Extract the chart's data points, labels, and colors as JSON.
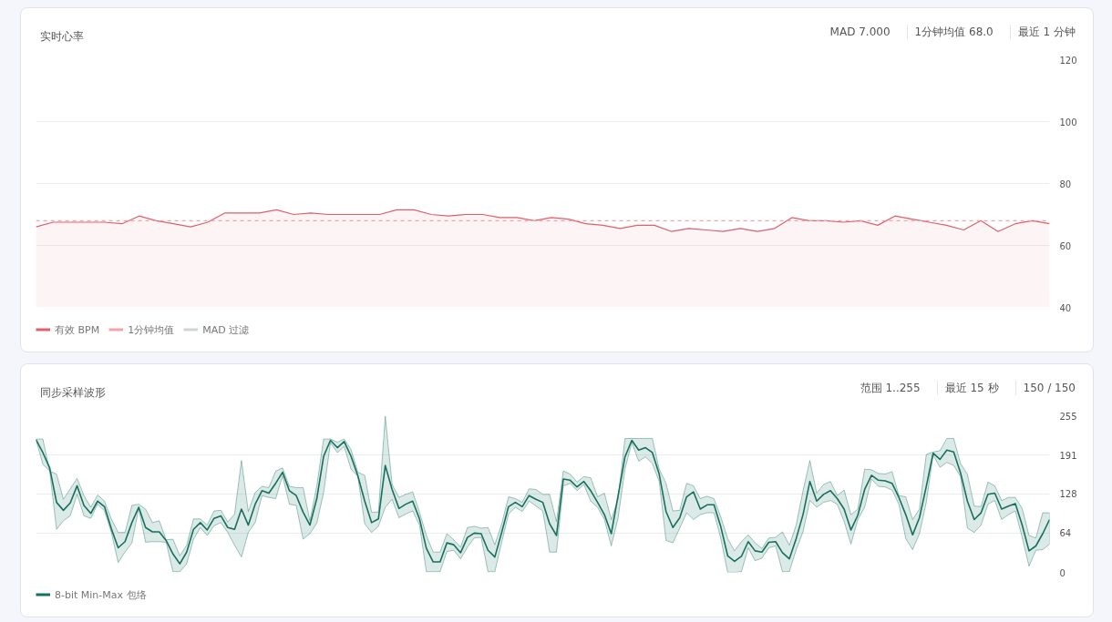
{
  "chart_data": [
    {
      "type": "line",
      "title": "实时心率",
      "annotations": [
        "MAD 7.000",
        "1分钟均值 68.0",
        "最近 1 分钟"
      ],
      "categories": [
        null,
        null,
        null,
        null,
        null,
        null,
        null,
        null,
        null,
        null,
        null,
        null,
        null,
        null,
        null,
        null,
        null,
        null,
        null,
        null,
        null,
        null,
        null,
        null,
        null,
        null,
        null,
        null,
        null,
        null,
        null,
        null,
        null,
        null,
        null,
        null,
        null,
        null,
        null,
        null,
        null,
        null,
        null,
        null,
        null,
        null,
        null,
        null,
        null,
        null,
        null,
        null,
        null,
        null,
        null,
        null,
        null,
        null,
        null,
        null
      ],
      "series": [
        {
          "name": "有效 BPM",
          "type": "area",
          "color": "#e0606e",
          "values": [
            66,
            67.5,
            67.5,
            67.5,
            67.5,
            67,
            69.5,
            68,
            67,
            66,
            67.5,
            70.5,
            70.5,
            70.5,
            71.5,
            70,
            70.5,
            70,
            70,
            70,
            70,
            71.5,
            71.5,
            70,
            69.5,
            70,
            70,
            69,
            69,
            68,
            69,
            68.5,
            67,
            66.5,
            65.5,
            66.5,
            66.5,
            64.5,
            65.5,
            65,
            64.5,
            65.5,
            64.5,
            65.5,
            69,
            68,
            68,
            67.5,
            68,
            66.5,
            69.5,
            68.5,
            67.5,
            66.5,
            65,
            68,
            64.5,
            67,
            68,
            67
          ]
        },
        {
          "name": "1分钟均值",
          "line_style": "dashed",
          "color": "#f0a3aa",
          "values": [
            68,
            68,
            68,
            68,
            68,
            68,
            68,
            68,
            68,
            68,
            68,
            68,
            68,
            68,
            68,
            68,
            68,
            68,
            68,
            68,
            68,
            68,
            68,
            68,
            68,
            68,
            68,
            68,
            68,
            68,
            68,
            68,
            68,
            68,
            68,
            68,
            68,
            68,
            68,
            68,
            68,
            68,
            68,
            68,
            68,
            68,
            68,
            68,
            68,
            68,
            68,
            68,
            68,
            68,
            68,
            68,
            68,
            68,
            68,
            68
          ]
        },
        {
          "name": "MAD 过滤",
          "color": "#cfd5dc",
          "values": [
            null,
            null,
            null,
            null,
            null,
            null,
            null,
            null,
            null,
            null,
            null,
            null,
            null,
            null,
            null,
            null,
            null,
            null,
            null,
            null,
            null,
            null,
            null,
            null,
            null,
            null,
            null,
            null,
            null,
            null,
            null,
            null,
            null,
            null,
            null,
            null,
            null,
            null,
            null,
            null,
            null,
            null,
            null,
            null,
            null,
            null,
            null,
            null,
            null,
            null,
            null,
            null,
            null,
            null,
            null,
            null,
            null,
            null,
            null,
            null
          ]
        }
      ],
      "ylim": [
        40,
        120
      ],
      "yticks": [
        40,
        60,
        80,
        100,
        120
      ],
      "grid": "y",
      "tick_labels": "y",
      "legend": "bottom left"
    },
    {
      "type": "line",
      "title": "同步采样波形",
      "annotations": [
        "范围 1..255",
        "最近 15 秒",
        "150 / 150"
      ],
      "categories": [
        null,
        null,
        null,
        null,
        null,
        null,
        null,
        null,
        null,
        null,
        null,
        null,
        null,
        null,
        null,
        null,
        null,
        null,
        null,
        null,
        null,
        null,
        null,
        null,
        null,
        null,
        null,
        null,
        null,
        null,
        null,
        null,
        null,
        null,
        null,
        null,
        null,
        null,
        null,
        null,
        null,
        null,
        null,
        null,
        null,
        null,
        null,
        null,
        null,
        null,
        null,
        null,
        null,
        null,
        null,
        null,
        null,
        null,
        null,
        null,
        null,
        null,
        null,
        null,
        null,
        null,
        null,
        null,
        null,
        null,
        null,
        null,
        null,
        null,
        null,
        null,
        null,
        null,
        null,
        null,
        null,
        null,
        null,
        null,
        null,
        null,
        null,
        null,
        null,
        null,
        null,
        null,
        null,
        null,
        null,
        null,
        null,
        null,
        null,
        null,
        null,
        null,
        null,
        null,
        null,
        null,
        null,
        null,
        null,
        null,
        null,
        null,
        null,
        null,
        null,
        null,
        null,
        null,
        null,
        null,
        null,
        null,
        null,
        null,
        null,
        null,
        null,
        null,
        null,
        null,
        null,
        null,
        null,
        null,
        null,
        null,
        null,
        null,
        null,
        null,
        null,
        null,
        null,
        null,
        null,
        null,
        null,
        null,
        null
      ],
      "series": [
        {
          "name": "8-bit Min-Max 包络",
          "color": "#17705f",
          "values": [
            216,
            195,
            170,
            114,
            101,
            113,
            141,
            109,
            96,
            116,
            107,
            71,
            40,
            50,
            81,
            106,
            73,
            66,
            66,
            52,
            30,
            14,
            33,
            70,
            81,
            69,
            88,
            92,
            73,
            70,
            103,
            77,
            111,
            133,
            129,
            145,
            163,
            133,
            125,
            98,
            77,
            120,
            189,
            215,
            203,
            213,
            189,
            157,
            116,
            81,
            87,
            174,
            135,
            104,
            111,
            116,
            87,
            39,
            17,
            17,
            48,
            45,
            32,
            57,
            64,
            63,
            36,
            25,
            65,
            107,
            114,
            107,
            125,
            119,
            114,
            79,
            60,
            152,
            150,
            139,
            148,
            133,
            114,
            94,
            63,
            125,
            188,
            215,
            199,
            203,
            195,
            160,
            99,
            73,
            89,
            123,
            131,
            103,
            110,
            110,
            74,
            27,
            18,
            26,
            50,
            35,
            33,
            49,
            50,
            32,
            22,
            55,
            94,
            148,
            116,
            127,
            133,
            120,
            103,
            69,
            93,
            135,
            158,
            150,
            149,
            145,
            122,
            94,
            61,
            89,
            140,
            194,
            184,
            199,
            196,
            162,
            116,
            86,
            97,
            127,
            129,
            103,
            108,
            112,
            77,
            35,
            43,
            63,
            86
          ],
          "upper": [
            217,
            217,
            165,
            160,
            119,
            136,
            153,
            125,
            106,
            126,
            116,
            87,
            65,
            65,
            109,
            111,
            103,
            81,
            84,
            53,
            54,
            27,
            44,
            87,
            87,
            77,
            100,
            101,
            82,
            95,
            182,
            99,
            130,
            140,
            138,
            165,
            170,
            140,
            138,
            138,
            84,
            141,
            217,
            217,
            212,
            217,
            200,
            163,
            158,
            98,
            98,
            254,
            143,
            122,
            127,
            131,
            98,
            60,
            33,
            33,
            63,
            53,
            41,
            73,
            75,
            72,
            73,
            45,
            79,
            123,
            120,
            114,
            136,
            135,
            127,
            127,
            83,
            165,
            160,
            147,
            156,
            154,
            123,
            129,
            86,
            120,
            218,
            218,
            218,
            218,
            218,
            168,
            145,
            100,
            101,
            145,
            141,
            120,
            124,
            120,
            90,
            55,
            35,
            50,
            61,
            48,
            39,
            56,
            57,
            66,
            44,
            77,
            133,
            182,
            129,
            143,
            148,
            125,
            134,
            94,
            103,
            168,
            167,
            161,
            160,
            164,
            125,
            123,
            86,
            103,
            192,
            196,
            198,
            218,
            218,
            177,
            160,
            108,
            107,
            147,
            141,
            117,
            122,
            122,
            104,
            60,
            56,
            97,
            97
          ],
          "lower": [
            216,
            176,
            165,
            70,
            84,
            92,
            127,
            92,
            88,
            111,
            100,
            65,
            16,
            33,
            48,
            104,
            49,
            50,
            50,
            49,
            1,
            1,
            14,
            54,
            73,
            60,
            76,
            81,
            65,
            44,
            25,
            65,
            81,
            125,
            122,
            120,
            157,
            111,
            109,
            54,
            63,
            80,
            130,
            211,
            195,
            205,
            168,
            156,
            79,
            65,
            75,
            106,
            119,
            89,
            95,
            100,
            77,
            1,
            1,
            1,
            34,
            36,
            22,
            41,
            56,
            57,
            1,
            1,
            49,
            95,
            106,
            99,
            116,
            108,
            100,
            33,
            33,
            141,
            145,
            133,
            143,
            116,
            106,
            86,
            43,
            89,
            168,
            211,
            181,
            188,
            177,
            148,
            52,
            48,
            72,
            97,
            86,
            94,
            97,
            97,
            55,
            0,
            0,
            1,
            40,
            19,
            23,
            40,
            43,
            1,
            1,
            37,
            66,
            117,
            106,
            114,
            117,
            111,
            83,
            46,
            86,
            106,
            152,
            140,
            139,
            134,
            111,
            55,
            37,
            63,
            114,
            191,
            171,
            179,
            174,
            156,
            72,
            65,
            77,
            111,
            117,
            86,
            94,
            100,
            57,
            10,
            36,
            37,
            46
          ]
        }
      ],
      "ylim": [
        0,
        255
      ],
      "yticks": [
        0,
        64,
        128,
        191,
        255
      ],
      "grid": "y",
      "tick_labels": "y",
      "legend": "bottom left"
    }
  ]
}
